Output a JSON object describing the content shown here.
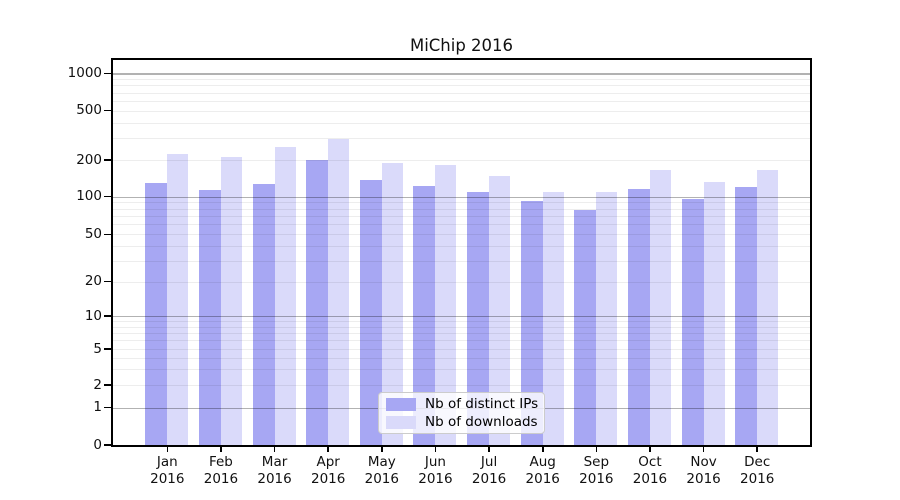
{
  "title": "MiChip 2016",
  "chart_data": {
    "type": "bar",
    "title": "MiChip 2016",
    "categories": [
      {
        "month": "Jan",
        "year": "2016"
      },
      {
        "month": "Feb",
        "year": "2016"
      },
      {
        "month": "Mar",
        "year": "2016"
      },
      {
        "month": "Apr",
        "year": "2016"
      },
      {
        "month": "May",
        "year": "2016"
      },
      {
        "month": "Jun",
        "year": "2016"
      },
      {
        "month": "Jul",
        "year": "2016"
      },
      {
        "month": "Aug",
        "year": "2016"
      },
      {
        "month": "Sep",
        "year": "2016"
      },
      {
        "month": "Oct",
        "year": "2016"
      },
      {
        "month": "Nov",
        "year": "2016"
      },
      {
        "month": "Dec",
        "year": "2016"
      }
    ],
    "series": [
      {
        "name": "Nb of distinct IPs",
        "color": "#a7a7f3",
        "values": [
          130,
          114,
          127,
          200,
          136,
          123,
          110,
          93,
          78,
          115,
          95,
          120
        ]
      },
      {
        "name": "Nb of downloads",
        "color": "#dadafa",
        "values": [
          225,
          213,
          255,
          297,
          189,
          182,
          147,
          109,
          110,
          165,
          133,
          165
        ]
      }
    ],
    "yscale": "log (with zero baseline)",
    "ytick_labels": [
      "1000",
      "500",
      "200",
      "100",
      "50",
      "20",
      "10",
      "5",
      "2",
      "1",
      "0"
    ],
    "ytick_values": [
      1000,
      500,
      200,
      100,
      50,
      20,
      10,
      5,
      2,
      1,
      0
    ],
    "ylim": [
      0,
      1300
    ],
    "grid": {
      "orientation": "horizontal",
      "major": "decades",
      "minor": "log subdivisions"
    },
    "legend": {
      "position": "lower-center",
      "entries": [
        "Nb of distinct IPs",
        "Nb of downloads"
      ]
    }
  },
  "colors": {
    "bar_dark": "#a7a7f3",
    "bar_light": "#dadafa",
    "grid_major": "rgba(0,0,0,0.30)",
    "grid_minor": "rgba(0,0,0,0.07)",
    "axis": "#000000",
    "background": "#ffffff"
  }
}
